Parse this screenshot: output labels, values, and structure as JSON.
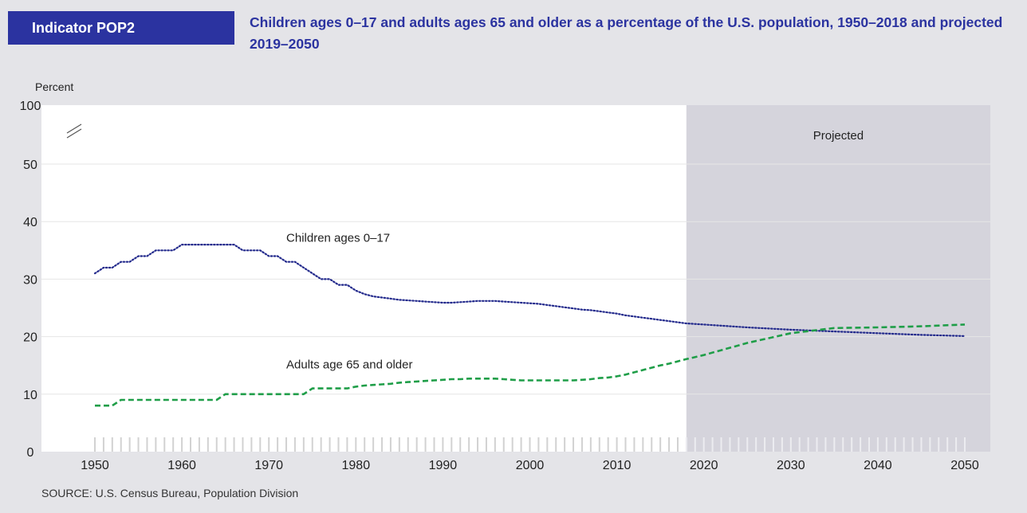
{
  "header": {
    "indicator": "Indicator POP2",
    "title": "Children ages 0–17 and adults ages 65 and older as a percentage of the U.S. population, 1950–2018 and projected 2019–2050"
  },
  "source": "SOURCE: U.S. Census Bureau, Population Division",
  "colors": {
    "background": "#e4e4e8",
    "plot": "#ffffff",
    "projected_shade": "#d5d4dc",
    "children": "#232a8c",
    "adults": "#1f9e48",
    "accent": "#2b33a0"
  },
  "chart_data": {
    "type": "line",
    "ylabel": "Percent",
    "xlabel": "",
    "yticks": [
      0,
      10,
      20,
      30,
      40,
      50,
      100
    ],
    "xticks": [
      1950,
      1960,
      1970,
      1980,
      1990,
      2000,
      2010,
      2020,
      2030,
      2040,
      2050
    ],
    "xlim": [
      1950,
      2050
    ],
    "ylim": [
      0,
      55
    ],
    "y_axis_break": true,
    "projected_from": 2018,
    "projected_label": "Projected",
    "grid": true,
    "series": [
      {
        "name": "Children ages 0–17",
        "style": "dotted",
        "x": [
          1950,
          1951,
          1952,
          1953,
          1954,
          1955,
          1956,
          1957,
          1958,
          1959,
          1960,
          1961,
          1962,
          1963,
          1964,
          1965,
          1966,
          1967,
          1968,
          1969,
          1970,
          1971,
          1972,
          1973,
          1974,
          1975,
          1976,
          1977,
          1978,
          1979,
          1980,
          1981,
          1982,
          1983,
          1984,
          1985,
          1986,
          1987,
          1988,
          1989,
          1990,
          1991,
          1992,
          1993,
          1994,
          1995,
          1996,
          1997,
          1998,
          1999,
          2000,
          2001,
          2002,
          2003,
          2004,
          2005,
          2006,
          2007,
          2008,
          2009,
          2010,
          2011,
          2012,
          2013,
          2014,
          2015,
          2016,
          2017,
          2018,
          2020,
          2025,
          2030,
          2035,
          2040,
          2045,
          2050
        ],
        "values": [
          31,
          32,
          32,
          33,
          33,
          34,
          34,
          35,
          35,
          35,
          36,
          36,
          36,
          36,
          36,
          36,
          36,
          35,
          35,
          35,
          34,
          34,
          33,
          33,
          32,
          31,
          30,
          30,
          29,
          29,
          28,
          27.4,
          27,
          26.8,
          26.6,
          26.4,
          26.3,
          26.2,
          26.1,
          26,
          25.9,
          25.9,
          26,
          26.1,
          26.2,
          26.2,
          26.2,
          26.1,
          26,
          25.9,
          25.8,
          25.7,
          25.5,
          25.3,
          25.1,
          24.9,
          24.7,
          24.6,
          24.4,
          24.2,
          24,
          23.7,
          23.5,
          23.3,
          23.1,
          22.9,
          22.7,
          22.5,
          22.3,
          22.1,
          21.6,
          21.2,
          20.9,
          20.6,
          20.3,
          20.1
        ]
      },
      {
        "name": "Adults age 65 and older",
        "style": "dashed",
        "x": [
          1950,
          1951,
          1952,
          1953,
          1954,
          1955,
          1956,
          1957,
          1958,
          1959,
          1960,
          1961,
          1962,
          1963,
          1964,
          1965,
          1966,
          1967,
          1968,
          1969,
          1970,
          1971,
          1972,
          1973,
          1974,
          1975,
          1976,
          1977,
          1978,
          1979,
          1980,
          1981,
          1982,
          1983,
          1984,
          1985,
          1986,
          1987,
          1988,
          1989,
          1990,
          1991,
          1992,
          1993,
          1994,
          1995,
          1996,
          1997,
          1998,
          1999,
          2000,
          2001,
          2002,
          2003,
          2004,
          2005,
          2006,
          2007,
          2008,
          2009,
          2010,
          2011,
          2012,
          2013,
          2014,
          2015,
          2016,
          2017,
          2018,
          2020,
          2025,
          2030,
          2035,
          2040,
          2045,
          2050
        ],
        "values": [
          8,
          8,
          8,
          9,
          9,
          9,
          9,
          9,
          9,
          9,
          9,
          9,
          9,
          9,
          9,
          10,
          10,
          10,
          10,
          10,
          10,
          10,
          10,
          10,
          10,
          11,
          11,
          11,
          11,
          11,
          11.3,
          11.5,
          11.6,
          11.7,
          11.8,
          12,
          12.1,
          12.2,
          12.3,
          12.4,
          12.5,
          12.6,
          12.6,
          12.7,
          12.7,
          12.7,
          12.7,
          12.6,
          12.5,
          12.4,
          12.4,
          12.4,
          12.4,
          12.4,
          12.4,
          12.4,
          12.5,
          12.6,
          12.8,
          12.9,
          13.1,
          13.4,
          13.8,
          14.2,
          14.6,
          15,
          15.3,
          15.7,
          16.1,
          16.8,
          18.9,
          20.6,
          21.5,
          21.6,
          21.8,
          22.1
        ]
      }
    ],
    "annotations": [
      {
        "text": "Children ages 0–17",
        "x": 1972,
        "y": 36.5
      },
      {
        "text": "Adults age 65 and older",
        "x": 1972,
        "y": 14.5
      }
    ]
  }
}
